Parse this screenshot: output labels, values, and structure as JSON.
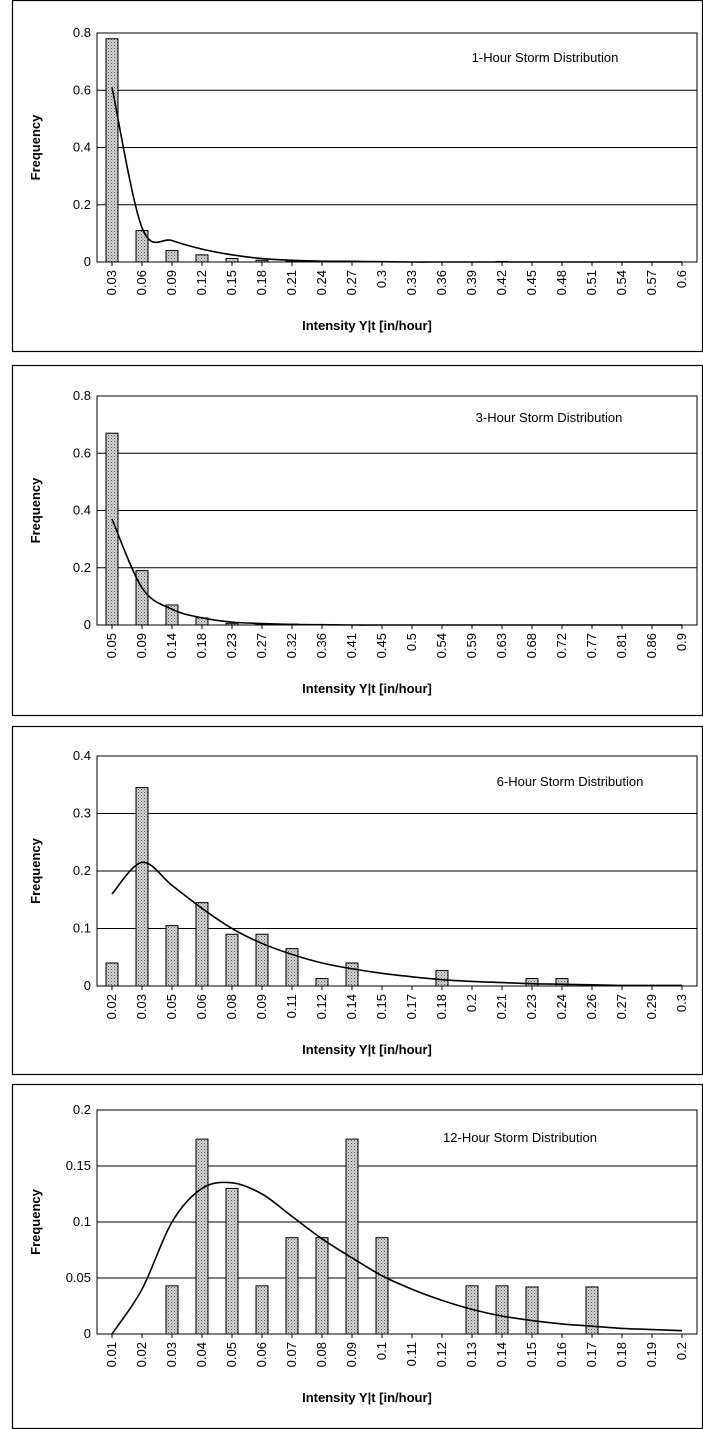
{
  "chart_data": [
    {
      "type": "bar",
      "title": "1-Hour Storm Distribution",
      "xlabel": "Intensity Y|t [in/hour]",
      "ylabel": "Frequency",
      "ylim": [
        0,
        0.8
      ],
      "yticks": [
        "0",
        "0.2",
        "0.4",
        "0.6",
        "0.8"
      ],
      "grid": true,
      "categories": [
        "0.03",
        "0.06",
        "0.09",
        "0.12",
        "0.15",
        "0.18",
        "0.21",
        "0.24",
        "0.27",
        "0.3",
        "0.33",
        "0.36",
        "0.39",
        "0.42",
        "0.45",
        "0.48",
        "0.51",
        "0.54",
        "0.57",
        "0.6"
      ],
      "values": [
        0.78,
        0.11,
        0.04,
        0.025,
        0.012,
        0.006,
        0.003,
        0.003,
        0.003,
        0,
        0,
        0,
        0,
        0.002,
        0,
        0,
        0,
        0,
        0,
        0
      ],
      "fit_curve": [
        0.61,
        0.12,
        0.075,
        0.045,
        0.025,
        0.012,
        0.006,
        0.003,
        0.002,
        0.001,
        0,
        0,
        0,
        0,
        0,
        0,
        0,
        0,
        0,
        0
      ]
    },
    {
      "type": "bar",
      "title": "3-Hour Storm Distribution",
      "xlabel": "Intensity Y|t [in/hour]",
      "ylabel": "Frequency",
      "ylim": [
        0,
        0.8
      ],
      "yticks": [
        "0",
        "0.2",
        "0.4",
        "0.6",
        "0.8"
      ],
      "grid": true,
      "categories": [
        "0.05",
        "0.09",
        "0.14",
        "0.18",
        "0.23",
        "0.27",
        "0.32",
        "0.36",
        "0.41",
        "0.45",
        "0.5",
        "0.54",
        "0.59",
        "0.63",
        "0.68",
        "0.72",
        "0.77",
        "0.81",
        "0.86",
        "0.9"
      ],
      "values": [
        0.67,
        0.19,
        0.07,
        0.025,
        0.006,
        0.003,
        0.003,
        0,
        0,
        0,
        0,
        0,
        0,
        0,
        0,
        0,
        0,
        0,
        0,
        0
      ],
      "fit_curve": [
        0.37,
        0.13,
        0.055,
        0.025,
        0.01,
        0.005,
        0.002,
        0.001,
        0,
        0,
        0,
        0,
        0,
        0,
        0,
        0,
        0,
        0,
        0,
        0
      ]
    },
    {
      "type": "bar",
      "title": "6-Hour Storm Distribution",
      "xlabel": "Intensity Y|t [in/hour]",
      "ylabel": "Frequency",
      "ylim": [
        0,
        0.4
      ],
      "yticks": [
        "0",
        "0.1",
        "0.2",
        "0.3",
        "0.4"
      ],
      "grid": true,
      "categories": [
        "0.02",
        "0.03",
        "0.05",
        "0.06",
        "0.08",
        "0.09",
        "0.11",
        "0.12",
        "0.14",
        "0.15",
        "0.17",
        "0.18",
        "0.2",
        "0.21",
        "0.23",
        "0.24",
        "0.26",
        "0.27",
        "0.29",
        "0.3"
      ],
      "values": [
        0.04,
        0.345,
        0.105,
        0.145,
        0.09,
        0.09,
        0.065,
        0.013,
        0.04,
        0,
        0,
        0.027,
        0,
        0,
        0.013,
        0.013,
        0,
        0,
        0,
        0
      ],
      "fit_curve": [
        0.16,
        0.215,
        0.175,
        0.135,
        0.1,
        0.074,
        0.055,
        0.04,
        0.03,
        0.022,
        0.016,
        0.011,
        0.008,
        0.006,
        0.004,
        0.003,
        0.002,
        0.001,
        0.001,
        0.001
      ]
    },
    {
      "type": "bar",
      "title": "12-Hour Storm Distribution",
      "xlabel": "Intensity Y|t [in/hour]",
      "ylabel": "Frequency",
      "ylim": [
        0,
        0.2
      ],
      "yticks": [
        "0",
        "0.05",
        "0.1",
        "0.15",
        "0.2"
      ],
      "grid": true,
      "categories": [
        "0.01",
        "0.02",
        "0.03",
        "0.04",
        "0.05",
        "0.06",
        "0.07",
        "0.08",
        "0.09",
        "0.1",
        "0.11",
        "0.12",
        "0.13",
        "0.14",
        "0.15",
        "0.16",
        "0.17",
        "0.18",
        "0.19",
        "0.2"
      ],
      "values": [
        0,
        0,
        0.043,
        0.174,
        0.13,
        0.043,
        0.086,
        0.086,
        0.174,
        0.086,
        0,
        0,
        0.043,
        0.043,
        0.042,
        0,
        0.042,
        0,
        0,
        0
      ],
      "fit_curve": [
        0,
        0.04,
        0.1,
        0.13,
        0.135,
        0.125,
        0.105,
        0.085,
        0.068,
        0.052,
        0.04,
        0.03,
        0.022,
        0.016,
        0.012,
        0.009,
        0.007,
        0.005,
        0.004,
        0.003
      ]
    }
  ]
}
